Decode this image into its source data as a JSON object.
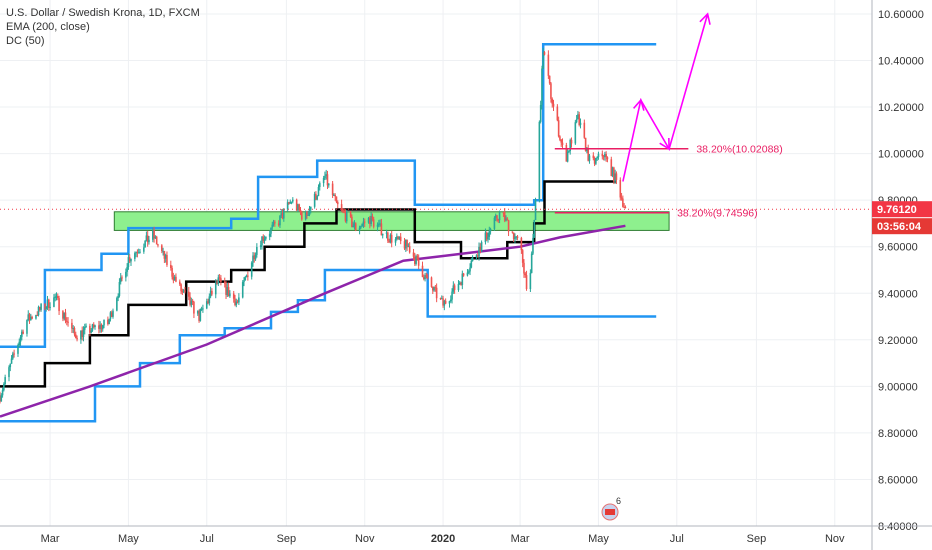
{
  "legend": {
    "title": "U.S. Dollar / Swedish Krona, 1D, FXCM",
    "ema": "EMA (200, close)",
    "dc": "DC (50)"
  },
  "badges": {
    "price": "9.76120",
    "countdown": "03:56:04"
  },
  "colors": {
    "up": "#26a69a",
    "down": "#ef5350",
    "ema": "#8e24aa",
    "dc_band": "#2196f3",
    "dc_mid": "#000000",
    "zone_fill": "#8ef08e",
    "zone_border": "#2e7d32",
    "annotation": "#e91e63",
    "projection": "#ff00ff",
    "price_badge": "#f23645",
    "countdown_badge": "#e53935"
  },
  "chart_data": {
    "type": "candlestick",
    "symbol": "USDSEK",
    "y_ticks": [
      "10.60000",
      "10.40000",
      "10.20000",
      "10.00000",
      "9.80000",
      "9.60000",
      "9.40000",
      "9.20000",
      "9.00000",
      "8.80000",
      "8.60000",
      "8.40000"
    ],
    "y_range": [
      8.4,
      10.66
    ],
    "x_ticks": [
      "Mar",
      "May",
      "Jul",
      "Sep",
      "Nov",
      "2020",
      "Mar",
      "May",
      "Jul",
      "Sep",
      "Nov"
    ],
    "x_range": [
      "2019-01-21",
      "2020-11-30"
    ],
    "price_path": [
      [
        "2019-01-21",
        8.96
      ],
      [
        "2019-02-10",
        9.28
      ],
      [
        "2019-03-05",
        9.38
      ],
      [
        "2019-03-20",
        9.22
      ],
      [
        "2019-04-15",
        9.27
      ],
      [
        "2019-05-01",
        9.55
      ],
      [
        "2019-05-20",
        9.65
      ],
      [
        "2019-06-10",
        9.42
      ],
      [
        "2019-06-25",
        9.3
      ],
      [
        "2019-07-10",
        9.45
      ],
      [
        "2019-07-25",
        9.36
      ],
      [
        "2019-08-10",
        9.62
      ],
      [
        "2019-08-25",
        9.7
      ],
      [
        "2019-09-05",
        9.8
      ],
      [
        "2019-09-15",
        9.72
      ],
      [
        "2019-10-01",
        9.9
      ],
      [
        "2019-10-10",
        9.78
      ],
      [
        "2019-10-25",
        9.68
      ],
      [
        "2019-11-05",
        9.72
      ],
      [
        "2019-11-20",
        9.64
      ],
      [
        "2019-12-05",
        9.6
      ],
      [
        "2019-12-20",
        9.45
      ],
      [
        "2020-01-01",
        9.35
      ],
      [
        "2020-01-15",
        9.46
      ],
      [
        "2020-02-01",
        9.62
      ],
      [
        "2020-02-15",
        9.75
      ],
      [
        "2020-03-01",
        9.6
      ],
      [
        "2020-03-08",
        9.38
      ],
      [
        "2020-03-13",
        9.8
      ],
      [
        "2020-03-19",
        10.45
      ],
      [
        "2020-03-25",
        10.25
      ],
      [
        "2020-04-05",
        9.97
      ],
      [
        "2020-04-15",
        10.15
      ],
      [
        "2020-04-25",
        9.95
      ],
      [
        "2020-05-05",
        10.0
      ],
      [
        "2020-05-15",
        9.88
      ],
      [
        "2020-05-22",
        9.76
      ]
    ],
    "ema_200": [
      [
        "2019-01-21",
        8.87
      ],
      [
        "2019-04-01",
        9.0
      ],
      [
        "2019-07-01",
        9.18
      ],
      [
        "2019-10-01",
        9.4
      ],
      [
        "2019-12-01",
        9.54
      ],
      [
        "2020-01-01",
        9.56
      ],
      [
        "2020-03-01",
        9.6
      ],
      [
        "2020-04-01",
        9.64
      ],
      [
        "2020-05-22",
        9.69
      ]
    ],
    "donchian_upper": [
      [
        "2019-01-21",
        9.17
      ],
      [
        "2019-02-25",
        9.5
      ],
      [
        "2019-04-10",
        9.57
      ],
      [
        "2019-05-01",
        9.68
      ],
      [
        "2019-07-20",
        9.72
      ],
      [
        "2019-08-10",
        9.9
      ],
      [
        "2019-09-25",
        9.97
      ],
      [
        "2019-11-01",
        9.97
      ],
      [
        "2019-12-10",
        9.78
      ],
      [
        "2020-01-20",
        9.78
      ],
      [
        "2020-03-12",
        9.8
      ],
      [
        "2020-03-19",
        10.47
      ],
      [
        "2020-06-15",
        10.47
      ]
    ],
    "donchian_lower": [
      [
        "2019-01-21",
        8.85
      ],
      [
        "2019-03-20",
        8.85
      ],
      [
        "2019-04-05",
        9.0
      ],
      [
        "2019-05-10",
        9.1
      ],
      [
        "2019-06-10",
        9.22
      ],
      [
        "2019-07-15",
        9.25
      ],
      [
        "2019-08-20",
        9.32
      ],
      [
        "2019-09-10",
        9.37
      ],
      [
        "2019-10-01",
        9.5
      ],
      [
        "2019-12-01",
        9.5
      ],
      [
        "2019-12-20",
        9.3
      ],
      [
        "2020-06-15",
        9.3
      ]
    ],
    "donchian_mid": [
      [
        "2019-01-21",
        9.0
      ],
      [
        "2019-02-25",
        9.1
      ],
      [
        "2019-04-01",
        9.22
      ],
      [
        "2019-05-01",
        9.35
      ],
      [
        "2019-06-15",
        9.45
      ],
      [
        "2019-07-20",
        9.5
      ],
      [
        "2019-08-15",
        9.6
      ],
      [
        "2019-09-15",
        9.7
      ],
      [
        "2019-10-10",
        9.76
      ],
      [
        "2019-11-15",
        9.76
      ],
      [
        "2019-12-10",
        9.62
      ],
      [
        "2020-01-15",
        9.55
      ],
      [
        "2020-02-20",
        9.62
      ],
      [
        "2020-03-12",
        9.7
      ],
      [
        "2020-03-20",
        9.88
      ],
      [
        "2020-05-15",
        9.88
      ]
    ],
    "support_zone": {
      "from": "2019-04-20",
      "to": "2020-06-25",
      "low": 9.67,
      "high": 9.75
    },
    "fib_levels": [
      {
        "label": "38.20%(10.02088)",
        "value": 10.021,
        "from": "2020-03-28",
        "to": "2020-07-10"
      },
      {
        "label": "38.20%(9.74596)",
        "value": 9.746,
        "from": "2020-03-28",
        "to": "2020-06-25"
      }
    ],
    "projection": [
      [
        "2020-05-20",
        9.88
      ],
      [
        "2020-06-03",
        10.23
      ],
      [
        "2020-06-25",
        10.02
      ],
      [
        "2020-07-25",
        10.6
      ]
    ],
    "last_price": 9.7612,
    "flag_badge": "6"
  }
}
